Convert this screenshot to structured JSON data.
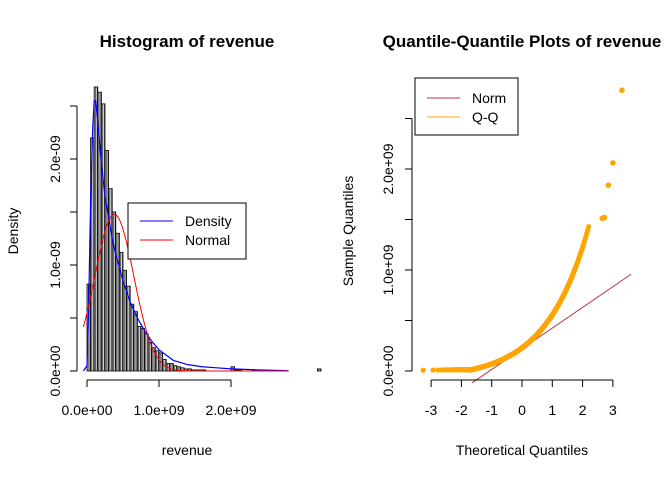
{
  "chart_data": [
    {
      "type": "histogram",
      "title": "Histogram of revenue",
      "xlabel": "revenue",
      "ylabel": "Density",
      "xlim": [
        -20000000.0,
        2850000000.0
      ],
      "ylim": [
        0,
        2.6e-09
      ],
      "x_ticks": [
        0,
        1000000000.0,
        2000000000.0
      ],
      "x_tick_labels": [
        "0.0e+00",
        "1.0e+09",
        "2.0e+09"
      ],
      "y_ticks": [
        0,
        5e-10,
        1e-09,
        1.5e-09,
        2e-09,
        2.5e-09
      ],
      "y_tick_labels": [
        "0.0e+00",
        "",
        "1.0e-09",
        "",
        "2.0e-09",
        ""
      ],
      "bin_width": 50000000.0,
      "bin_start": 0,
      "densities": [
        0.82,
        2.2e-09,
        2.68e-09,
        2.63e-09,
        2.52e-09,
        2.08e-09,
        1.72e-09,
        1.5e-09,
        1.3e-09,
        1.12e-09,
        9.5e-10,
        8e-10,
        6.3e-10,
        5.6e-10,
        4.2e-10,
        4e-10,
        3.5e-10,
        2.7e-10,
        2.2e-10,
        1.9e-10,
        1.7e-10,
        1.1e-10,
        7e-11,
        7e-11,
        5e-11,
        4e-11,
        3e-11,
        2e-11,
        2e-11,
        1e-11,
        1e-11,
        1e-11,
        1e-11,
        0,
        0,
        0,
        0,
        0,
        0,
        0,
        4e-11,
        1e-11,
        1e-11,
        0,
        0,
        0,
        1e-11,
        0,
        0,
        1e-11,
        0,
        0,
        0,
        0,
        0,
        0,
        0,
        0,
        0,
        0,
        0,
        0,
        0,
        0,
        2e-11
      ],
      "density_curve": {
        "x": [
          -50000000.0,
          0,
          20000000.0,
          50000000.0,
          80000000.0,
          100000000.0,
          120000000.0,
          150000000.0,
          200000000.0,
          250000000.0,
          300000000.0,
          350000000.0,
          400000000.0,
          500000000.0,
          600000000.0,
          700000000.0,
          800000000.0,
          900000000.0,
          1000000000.0,
          1200000000.0,
          1400000000.0,
          1600000000.0,
          1800000000.0,
          2000000000.0,
          2400000000.0,
          2700000000.0,
          2800000000.0
        ],
        "y": [
          0,
          5e-11,
          5e-10,
          1.6e-09,
          2.3e-09,
          2.55e-09,
          2.55e-09,
          2.35e-09,
          1.95e-09,
          1.65e-09,
          1.45e-09,
          1.25e-09,
          1.1e-09,
          8.5e-10,
          6.5e-10,
          5e-10,
          3.8e-10,
          2.8e-10,
          2e-10,
          1e-10,
          6e-11,
          4e-11,
          3e-11,
          2e-11,
          1e-11,
          5e-12,
          3e-12
        ]
      },
      "normal_curve": {
        "mean": 380000000.0,
        "sd": 270000000.0
      },
      "legend": {
        "position": "center-right",
        "entries": [
          {
            "label": "Density",
            "color": "#0000ff"
          },
          {
            "label": "Normal",
            "color": "#ff0000"
          }
        ]
      }
    },
    {
      "type": "scatter",
      "title": "Quantile-Quantile Plots of revenue",
      "xlabel": "Theoretical Quantiles",
      "ylabel": "Sample Quantiles",
      "xlim": [
        -3.5,
        3.5
      ],
      "ylim": [
        0,
        2750000000.0
      ],
      "x_ticks": [
        -3,
        -2,
        -1,
        0,
        1,
        2,
        3
      ],
      "x_tick_labels": [
        "-3",
        "-2",
        "-1",
        "0",
        "1",
        "2",
        "3"
      ],
      "y_ticks": [
        0,
        500000000.0,
        1000000000.0,
        1500000000.0,
        2000000000.0,
        2500000000.0
      ],
      "y_tick_labels": [
        "0.0e+00",
        "",
        "1.0e+09",
        "",
        "2.0e+09",
        ""
      ],
      "reference_line": {
        "intercept": 220000000.0,
        "slope": 205000000.0,
        "color": "#b03a3a"
      },
      "outliers": [
        {
          "x": 2.65,
          "y": 1510000000.0
        },
        {
          "x": 2.72,
          "y": 1520000000.0
        },
        {
          "x": 2.85,
          "y": 1840000000.0
        },
        {
          "x": 3.0,
          "y": 2060000000.0
        },
        {
          "x": 3.3,
          "y": 2780000000.0
        }
      ],
      "point_color": "#ffa500",
      "legend": {
        "position": "top-left",
        "entries": [
          {
            "label": "Norm",
            "color": "#b03a3a"
          },
          {
            "label": "Q-Q",
            "color": "#ffa500"
          }
        ]
      }
    }
  ]
}
